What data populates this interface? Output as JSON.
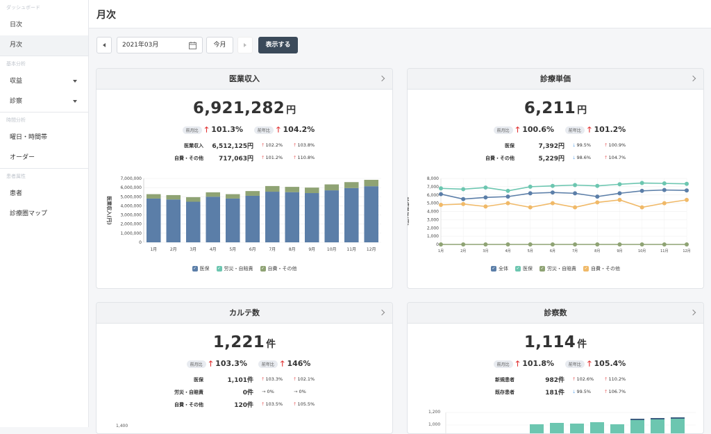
{
  "sidebar": {
    "sections": [
      {
        "label": "ダッシュボード",
        "items": [
          {
            "label": "日次",
            "active": false
          },
          {
            "label": "月次",
            "active": true
          }
        ]
      },
      {
        "label": "基本分析",
        "items": [
          {
            "label": "収益",
            "caret": true
          },
          {
            "label": "診察",
            "caret": true
          }
        ]
      },
      {
        "label": "時間分析",
        "items": [
          {
            "label": "曜日・時間帯"
          },
          {
            "label": "オーダー"
          }
        ]
      },
      {
        "label": "患者属性",
        "items": [
          {
            "label": "患者"
          },
          {
            "label": "診療圏マップ"
          }
        ]
      }
    ]
  },
  "header": {
    "title": "月次"
  },
  "controls": {
    "date_value": "2021年03月",
    "this_month": "今月",
    "show": "表示する"
  },
  "cards": {
    "revenue": {
      "title": "医業収入",
      "value": "6,921,282",
      "unit": "円",
      "ratio1_label": "前月比",
      "ratio1_value": "101.3%",
      "ratio2_label": "前年比",
      "ratio2_value": "104.2%",
      "rows": [
        {
          "label": "医業収入",
          "value": "6,512,125円",
          "r1": "102.2%",
          "r2": "103.8%"
        },
        {
          "label": "自費・その他",
          "value": "717,063円",
          "r1": "101.2%",
          "r2": "110.8%"
        }
      ]
    },
    "unit_price": {
      "title": "診療単価",
      "value": "6,211",
      "unit": "円",
      "ratio1_label": "前月比",
      "ratio1_value": "100.6%",
      "ratio2_label": "前年比",
      "ratio2_value": "101.2%",
      "rows": [
        {
          "label": "医保",
          "value": "7,392円",
          "r1": "99.5%",
          "r2": "100.9%"
        },
        {
          "label": "自費・その他",
          "value": "5,229円",
          "r1": "98.6%",
          "r2": "104.7%"
        }
      ]
    },
    "charts": {
      "title": "カルテ数",
      "value": "1,221",
      "unit": "件",
      "ratio1_label": "前月比",
      "ratio1_value": "103.3%",
      "ratio2_label": "前年比",
      "ratio2_value": "146%",
      "rows": [
        {
          "label": "医保",
          "value": "1,101件",
          "r1": "103.3%",
          "r2": "102.1%"
        },
        {
          "label": "労災・自賠責",
          "value": "0件",
          "r1": "0%",
          "r2": "0%"
        },
        {
          "label": "自費・その他",
          "value": "120件",
          "r1": "103.5%",
          "r2": "105.5%"
        }
      ],
      "axis_top_tick": "1,400"
    },
    "visits": {
      "title": "診察数",
      "value": "1,114",
      "unit": "件",
      "ratio1_label": "前月比",
      "ratio1_value": "101.8%",
      "ratio2_label": "前年比",
      "ratio2_value": "105.4%",
      "rows": [
        {
          "label": "新規患者",
          "value": "982件",
          "r1": "102.6%",
          "r2": "110.2%"
        },
        {
          "label": "既存患者",
          "value": "181件",
          "r1": "99.5%",
          "r2": "106.7%"
        }
      ],
      "axis_ticks": [
        "1,200",
        "1,000"
      ]
    }
  },
  "chart_data": [
    {
      "type": "bar",
      "stacked": true,
      "categories": [
        "1月",
        "2月",
        "3月",
        "4月",
        "5月",
        "6月",
        "7月",
        "8月",
        "9月",
        "10月",
        "11月",
        "12月"
      ],
      "ylabel": "医業収入(円)",
      "ylim": [
        0,
        7000000
      ],
      "yticks": [
        "0",
        "1,000,000",
        "2,000,000",
        "3,000,000",
        "4,000,000",
        "5,000,000",
        "6,000,000",
        "7,000,000"
      ],
      "series": [
        {
          "name": "医保",
          "color": "#5b7ea8",
          "values": [
            4800000,
            4700000,
            4450000,
            5000000,
            4800000,
            5100000,
            5550000,
            5500000,
            5400000,
            5700000,
            5950000,
            6150000
          ]
        },
        {
          "name": "労災・自賠責",
          "color": "#6cc6b0",
          "values": [
            0,
            0,
            0,
            0,
            0,
            0,
            0,
            0,
            0,
            0,
            0,
            0
          ]
        },
        {
          "name": "自費・その他",
          "color": "#8fa374",
          "values": [
            480000,
            480000,
            500000,
            480000,
            480000,
            520000,
            620000,
            580000,
            600000,
            650000,
            650000,
            700000
          ]
        }
      ],
      "legend": "bottom"
    },
    {
      "type": "line",
      "categories": [
        "1月",
        "2月",
        "3月",
        "4月",
        "5月",
        "6月",
        "7月",
        "8月",
        "9月",
        "10月",
        "11月",
        "12月"
      ],
      "ylabel": "診療単価(円)",
      "ylim": [
        0,
        8000
      ],
      "yticks": [
        "0",
        "1,000",
        "2,000",
        "3,000",
        "4,000",
        "5,000",
        "6,000",
        "7,000",
        "8,000"
      ],
      "series": [
        {
          "name": "全体",
          "color": "#5b7ea8",
          "values": [
            6100,
            5500,
            5700,
            5800,
            6200,
            6300,
            6200,
            5800,
            6200,
            6500,
            6600,
            6550
          ]
        },
        {
          "name": "医保",
          "color": "#6cc6b0",
          "values": [
            6800,
            6700,
            6900,
            6500,
            7000,
            7100,
            7200,
            7100,
            7300,
            7450,
            7400,
            7350
          ]
        },
        {
          "name": "労災・自賠責",
          "color": "#8fa374",
          "values": [
            0,
            0,
            0,
            0,
            0,
            0,
            0,
            0,
            0,
            0,
            0,
            0
          ]
        },
        {
          "name": "自費・その他",
          "color": "#f0b968",
          "values": [
            4800,
            4900,
            4600,
            5000,
            4500,
            5000,
            4500,
            5100,
            5400,
            4500,
            5000,
            5400
          ]
        }
      ],
      "legend": "bottom"
    }
  ]
}
